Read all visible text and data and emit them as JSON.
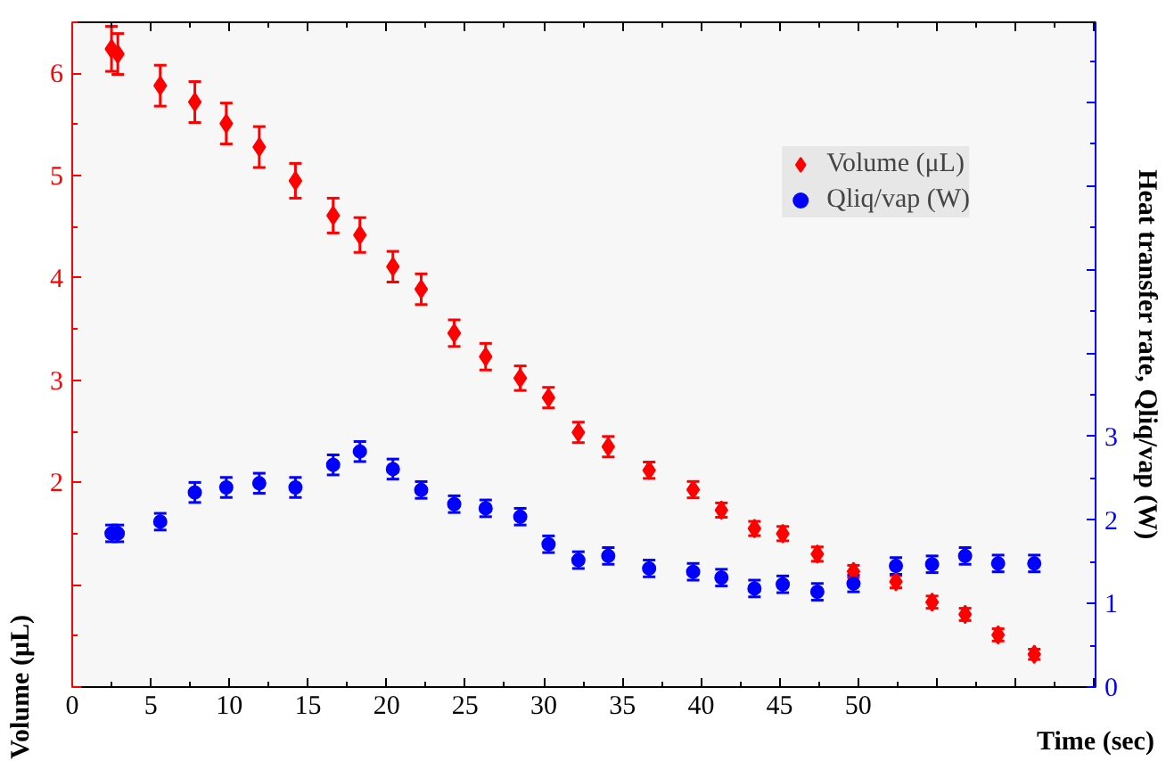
{
  "chart_data": {
    "type": "scatter",
    "xlabel": "Time (sec)",
    "ylabel": "Volume (μL)",
    "y2label": "Heat transfer rate, Qliq/vap (W)",
    "x": [
      2.5,
      2.9,
      5.6,
      7.8,
      9.8,
      11.9,
      14.2,
      16.6,
      18.3,
      20.4,
      22.2,
      24.3,
      26.3,
      28.5,
      30.3,
      32.2,
      34.1,
      36.7,
      39.5,
      41.3,
      43.4,
      45.2,
      47.4,
      49.7,
      52.4,
      54.7,
      56.8,
      58.9,
      61.2
    ],
    "series": [
      {
        "name": "Volume (μL)",
        "color": "#ff0000",
        "marker": "diamond",
        "values": [
          6.24,
          6.19,
          5.88,
          5.72,
          5.51,
          5.28,
          4.95,
          4.61,
          4.42,
          4.11,
          3.89,
          3.46,
          3.23,
          3.02,
          2.83,
          2.49,
          2.35,
          2.12,
          1.93,
          1.73,
          1.55,
          1.5,
          1.3,
          1.13,
          1.03,
          0.83,
          0.71,
          0.51,
          0.32
        ],
        "errors": [
          0.22,
          0.2,
          0.2,
          0.2,
          0.2,
          0.2,
          0.17,
          0.17,
          0.17,
          0.15,
          0.15,
          0.13,
          0.13,
          0.12,
          0.1,
          0.1,
          0.1,
          0.08,
          0.08,
          0.07,
          0.07,
          0.07,
          0.07,
          0.06,
          0.06,
          0.06,
          0.06,
          0.06,
          0.05
        ]
      },
      {
        "name": "Qliq/vap (W)",
        "color": "#0000ff",
        "marker": "circle",
        "axis": "y2",
        "values": [
          1.84,
          1.84,
          1.98,
          2.33,
          2.39,
          2.44,
          2.39,
          2.66,
          2.82,
          2.61,
          2.36,
          2.19,
          2.14,
          2.04,
          1.71,
          1.52,
          1.57,
          1.42,
          1.38,
          1.31,
          1.18,
          1.23,
          1.14,
          1.24,
          1.45,
          1.47,
          1.57,
          1.48,
          1.48
        ],
        "errors": [
          0.1,
          0.1,
          0.1,
          0.12,
          0.12,
          0.12,
          0.12,
          0.12,
          0.12,
          0.12,
          0.1,
          0.1,
          0.1,
          0.1,
          0.1,
          0.1,
          0.1,
          0.1,
          0.1,
          0.1,
          0.1,
          0.1,
          0.1,
          0.1,
          0.1,
          0.1,
          0.1,
          0.1,
          0.1
        ]
      }
    ],
    "xlim": [
      0,
      65.1
    ],
    "xticks": [
      0,
      5,
      10,
      15,
      20,
      25,
      30,
      35,
      40,
      45,
      50,
      {
        "value": 55,
        "label": null
      },
      {
        "value": 60,
        "label": null
      },
      {
        "value": 65,
        "label": null
      }
    ],
    "ylim": [
      0,
      6.5
    ],
    "yticks": [
      {
        "value": 0,
        "label": null
      },
      {
        "value": 1,
        "label": null
      },
      2,
      3,
      4,
      5,
      6
    ],
    "y2lim": [
      0,
      7.96
    ],
    "y2ticks": [
      0,
      1,
      2,
      3,
      {
        "value": 4,
        "label": null
      },
      {
        "value": 5,
        "label": null
      },
      {
        "value": 6,
        "label": null
      },
      {
        "value": 7,
        "label": null
      }
    ],
    "grid": false,
    "legend": "top right"
  }
}
